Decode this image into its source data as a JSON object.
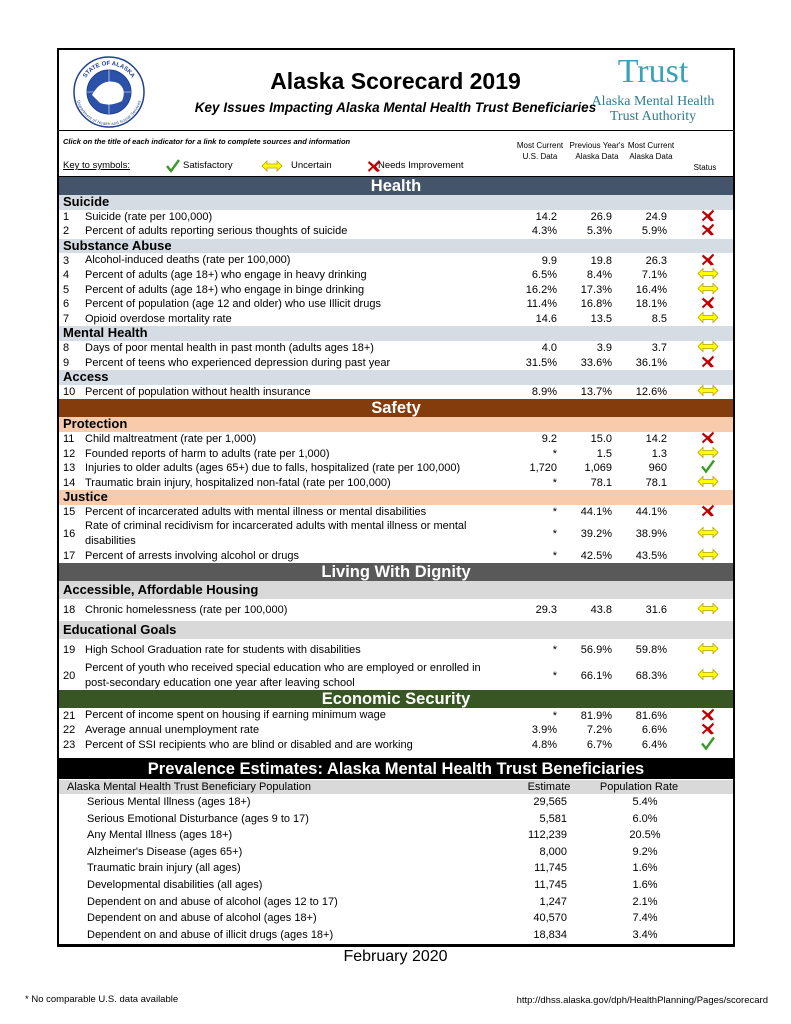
{
  "header": {
    "title": "Alaska Scorecard 2019",
    "subtitle": "Key Issues Impacting Alaska Mental Health Trust Beneficiaries",
    "seal_top": "STATE OF ALASKA",
    "seal_bottom": "Department of Health and Social Services",
    "logo_name": "Trust",
    "logo_line1": "Alaska Mental Health",
    "logo_line2": "Trust Authority"
  },
  "instructions": "Click on the title of each indicator for a link to complete sources and information",
  "key": {
    "label": "Key to symbols:",
    "items": [
      {
        "status": "satisfactory",
        "label": "Satisfactory"
      },
      {
        "status": "uncertain",
        "label": "Uncertain"
      },
      {
        "status": "needs",
        "label": "Needs Improvement"
      }
    ]
  },
  "columns": [
    "Most Current U.S. Data",
    "Previous Year's Alaska Data",
    "Most Current Alaska Data",
    "Status"
  ],
  "sections": [
    {
      "title": "Health",
      "color": "#44546a",
      "group_color": "#d6dce4",
      "groups": [
        {
          "title": "Suicide",
          "rows": [
            {
              "num": "1",
              "label": "Suicide (rate per 100,000)",
              "us": "14.2",
              "prev": "26.9",
              "cur": "24.9",
              "status": "needs"
            },
            {
              "num": "2",
              "label": "Percent of adults reporting serious thoughts of suicide",
              "us": "4.3%",
              "prev": "5.3%",
              "cur": "5.9%",
              "status": "needs"
            }
          ]
        },
        {
          "title": "Substance Abuse",
          "rows": [
            {
              "num": "3",
              "label": "Alcohol-induced deaths (rate per 100,000)",
              "us": "9.9",
              "prev": "19.8",
              "cur": "26.3",
              "status": "needs"
            },
            {
              "num": "4",
              "label": "Percent of adults (age 18+) who engage in heavy drinking",
              "us": "6.5%",
              "prev": "8.4%",
              "cur": "7.1%",
              "status": "uncertain"
            },
            {
              "num": "5",
              "label": "Percent of adults (age 18+) who engage in binge drinking",
              "us": "16.2%",
              "prev": "17.3%",
              "cur": "16.4%",
              "status": "uncertain"
            },
            {
              "num": "6",
              "label": "Percent of population (age 12 and older) who use Illicit drugs",
              "us": "11.4%",
              "prev": "16.8%",
              "cur": "18.1%",
              "status": "needs"
            },
            {
              "num": "7",
              "label": "Opioid overdose mortality rate",
              "us": "14.6",
              "prev": "13.5",
              "cur": "8.5",
              "status": "uncertain"
            }
          ]
        },
        {
          "title": "Mental Health",
          "rows": [
            {
              "num": "8",
              "label": "Days of poor mental health in past month (adults ages 18+)",
              "us": "4.0",
              "prev": "3.9",
              "cur": "3.7",
              "status": "uncertain"
            },
            {
              "num": "9",
              "label": "Percent of teens who experienced depression during past year",
              "us": "31.5%",
              "prev": "33.6%",
              "cur": "36.1%",
              "status": "needs"
            }
          ]
        },
        {
          "title": "Access",
          "rows": [
            {
              "num": "10",
              "label": "Percent of population without health insurance",
              "us": "8.9%",
              "prev": "13.7%",
              "cur": "12.6%",
              "status": "uncertain"
            }
          ]
        }
      ]
    },
    {
      "title": "Safety",
      "color": "#843c0c",
      "group_color": "#f8cbad",
      "groups": [
        {
          "title": "Protection",
          "rows": [
            {
              "num": "11",
              "label": "Child maltreatment (rate per 1,000)",
              "us": "9.2",
              "prev": "15.0",
              "cur": "14.2",
              "status": "needs"
            },
            {
              "num": "12",
              "label": "Founded reports of harm to adults (rate per 1,000)",
              "us": "*",
              "prev": "1.5",
              "cur": "1.3",
              "status": "uncertain"
            },
            {
              "num": "13",
              "label": "Injuries to older adults (ages 65+) due to falls, hospitalized (rate per 100,000)",
              "us": "1,720",
              "prev": "1,069",
              "cur": "960",
              "status": "satisfactory"
            },
            {
              "num": "14",
              "label": "Traumatic brain injury, hospitalized non-fatal (rate per 100,000)",
              "us": "*",
              "prev": "78.1",
              "cur": "78.1",
              "status": "uncertain"
            }
          ]
        },
        {
          "title": "Justice",
          "rows": [
            {
              "num": "15",
              "label": "Percent of incarcerated adults with mental illness or mental disabilities",
              "us": "*",
              "prev": "44.1%",
              "cur": "44.1%",
              "status": "needs"
            },
            {
              "num": "16",
              "label": "Rate of criminal recidivism for incarcerated adults with mental illness or mental disabilities",
              "us": "*",
              "prev": "39.2%",
              "cur": "38.9%",
              "status": "uncertain"
            },
            {
              "num": "17",
              "label": "Percent of arrests involving alcohol or drugs",
              "us": "*",
              "prev": "42.5%",
              "cur": "43.5%",
              "status": "uncertain"
            }
          ]
        }
      ]
    },
    {
      "title": "Living With Dignity",
      "color": "#595959",
      "group_color": "#d9d9d9",
      "groups": [
        {
          "title": "Accessible, Affordable Housing",
          "rows": [
            {
              "num": "18",
              "label": "Chronic homelessness (rate per 100,000)",
              "us": "29.3",
              "prev": "43.8",
              "cur": "31.6",
              "status": "uncertain"
            }
          ]
        },
        {
          "title": "Educational Goals",
          "rows": [
            {
              "num": "19",
              "label": "High School Graduation rate for students with disabilities",
              "us": "*",
              "prev": "56.9%",
              "cur": "59.8%",
              "status": "uncertain"
            },
            {
              "num": "20",
              "label": "Percent of youth who received special education who are employed or enrolled in post-secondary education one year after leaving school",
              "us": "*",
              "prev": "66.1%",
              "cur": "68.3%",
              "status": "uncertain"
            }
          ]
        }
      ]
    },
    {
      "title": "Economic Security",
      "color": "#375623",
      "group_color": "#e2efda",
      "groups": [
        {
          "rows": [
            {
              "num": "21",
              "label": "Percent of income spent on housing if earning minimum wage",
              "us": "*",
              "prev": "81.9%",
              "cur": "81.6%",
              "status": "needs"
            },
            {
              "num": "22",
              "label": "Average annual unemployment rate",
              "us": "3.9%",
              "prev": "7.2%",
              "cur": "6.6%",
              "status": "needs"
            },
            {
              "num": "23",
              "label": "Percent of SSI recipients who are blind or disabled and are working",
              "us": "4.8%",
              "prev": "6.7%",
              "cur": "6.4%",
              "status": "satisfactory"
            }
          ]
        }
      ]
    }
  ],
  "prevalence": {
    "title": "Prevalence Estimates: Alaska Mental Health Trust Beneficiaries",
    "columns": [
      "Alaska Mental Health Trust Beneficiary Population",
      "Estimate",
      "Population Rate"
    ],
    "rows": [
      [
        "Serious Mental Illness (ages 18+)",
        "29,565",
        "5.4%"
      ],
      [
        "Serious Emotional Disturbance (ages 9 to 17)",
        "5,581",
        "6.0%"
      ],
      [
        "Any Mental Illness (ages 18+)",
        "112,239",
        "20.5%"
      ],
      [
        "Alzheimer's Disease (ages 65+)",
        "8,000",
        "9.2%"
      ],
      [
        "Traumatic brain injury (all ages)",
        "11,745",
        "1.6%"
      ],
      [
        "Developmental disabilities (all ages)",
        "11,745",
        "1.6%"
      ],
      [
        "Dependent on and abuse of alcohol (ages 12 to 17)",
        "1,247",
        "2.1%"
      ],
      [
        "Dependent on and abuse of alcohol (ages 18+)",
        "40,570",
        "7.4%"
      ],
      [
        "Dependent on and abuse of illicit drugs (ages 18+)",
        "18,834",
        "3.4%"
      ]
    ]
  },
  "footer": {
    "date": "February 2020",
    "note": "* No comparable U.S. data available",
    "url": "http://dhss.alaska.gov/dph/HealthPlanning/Pages/scorecard"
  }
}
